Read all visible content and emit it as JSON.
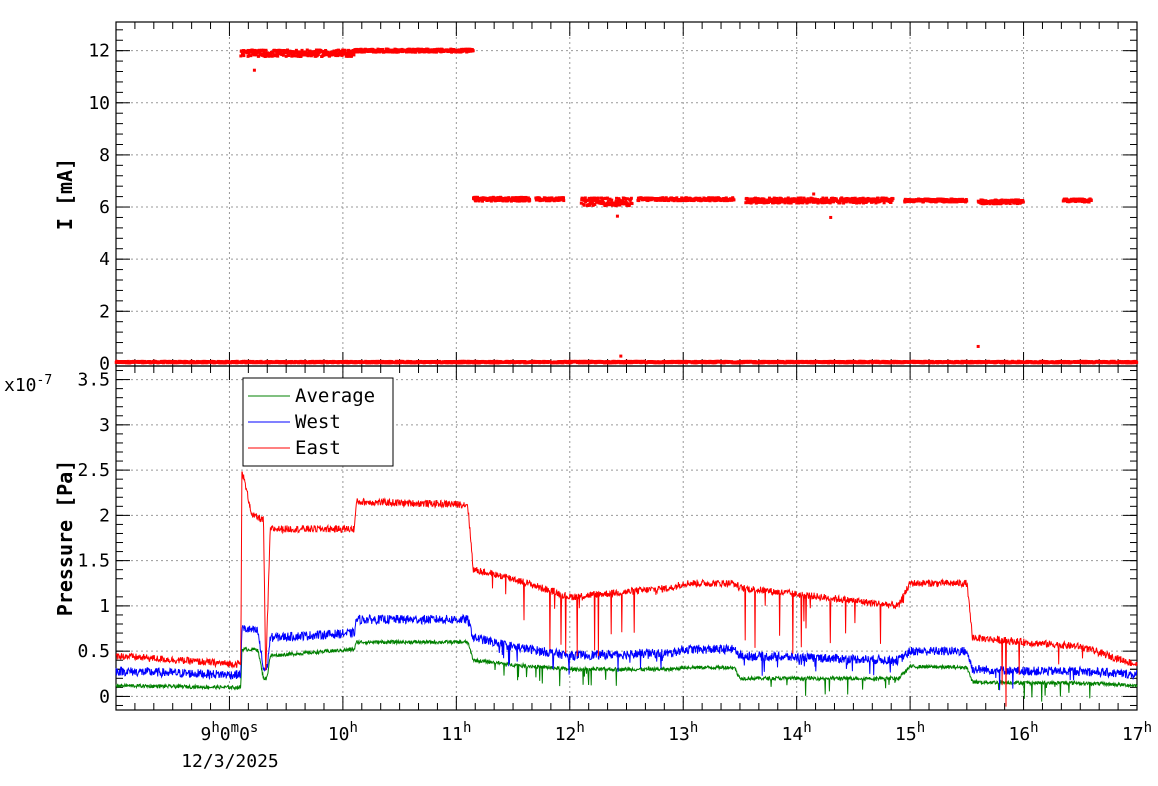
{
  "chart_data": [
    {
      "type": "scatter",
      "ylabel": "I [mA]",
      "xlim": [
        8.0,
        17.0
      ],
      "ylim": [
        -0.1,
        13.1
      ],
      "yticks": [
        0,
        2,
        4,
        6,
        8,
        10,
        12
      ],
      "grid": true,
      "series": [
        {
          "color": "#ff0000",
          "segments": [
            {
              "x0": 8.0,
              "x1": 17.0,
              "value": 0.05,
              "spread": 0.06
            },
            {
              "x0": 9.1,
              "x1": 10.1,
              "value": 11.9,
              "spread": 0.25
            },
            {
              "x0": 10.1,
              "x1": 11.15,
              "value": 12.0,
              "spread": 0.12
            },
            {
              "x0": 11.15,
              "x1": 11.65,
              "value": 6.3,
              "spread": 0.15
            },
            {
              "x0": 11.7,
              "x1": 11.95,
              "value": 6.3,
              "spread": 0.12
            },
            {
              "x0": 12.1,
              "x1": 12.55,
              "value": 6.2,
              "spread": 0.3
            },
            {
              "x0": 12.6,
              "x1": 12.85,
              "value": 6.3,
              "spread": 0.12
            },
            {
              "x0": 12.85,
              "x1": 13.45,
              "value": 6.3,
              "spread": 0.12
            },
            {
              "x0": 13.55,
              "x1": 14.85,
              "value": 6.25,
              "spread": 0.2
            },
            {
              "x0": 14.95,
              "x1": 15.5,
              "value": 6.25,
              "spread": 0.12
            },
            {
              "x0": 15.6,
              "x1": 16.0,
              "value": 6.2,
              "spread": 0.15
            },
            {
              "x0": 16.35,
              "x1": 16.6,
              "value": 6.25,
              "spread": 0.12
            }
          ],
          "outliers": [
            [
              9.22,
              11.25
            ],
            [
              12.42,
              5.65
            ],
            [
              14.3,
              5.6
            ],
            [
              12.45,
              0.28
            ],
            [
              15.6,
              0.65
            ],
            [
              14.15,
              6.5
            ]
          ]
        }
      ]
    },
    {
      "type": "line",
      "ylabel": "Pressure [Pa]",
      "exponent_label": "x10",
      "exponent_power": "-7",
      "xlim": [
        8.0,
        17.0
      ],
      "ylim": [
        -0.15,
        3.65
      ],
      "yticks": [
        "0",
        "0.5",
        "1",
        "1.5",
        "2",
        "2.5",
        "3",
        "3.5"
      ],
      "ytick_values": [
        0,
        0.5,
        1,
        1.5,
        2,
        2.5,
        3,
        3.5
      ],
      "grid": true,
      "legend_position": "top-left",
      "series": [
        {
          "name": "Average",
          "color": "#008000",
          "profile": [
            [
              8.0,
              0.12
            ],
            [
              9.0,
              0.1
            ],
            [
              9.1,
              0.1
            ],
            [
              9.11,
              0.52
            ],
            [
              9.25,
              0.52
            ],
            [
              9.3,
              0.2
            ],
            [
              9.33,
              0.2
            ],
            [
              9.36,
              0.45
            ],
            [
              10.1,
              0.52
            ],
            [
              10.12,
              0.6
            ],
            [
              11.1,
              0.6
            ],
            [
              11.15,
              0.4
            ],
            [
              11.5,
              0.35
            ],
            [
              12.0,
              0.3
            ],
            [
              12.9,
              0.3
            ],
            [
              13.0,
              0.32
            ],
            [
              13.45,
              0.32
            ],
            [
              13.5,
              0.2
            ],
            [
              14.9,
              0.2
            ],
            [
              15.0,
              0.33
            ],
            [
              15.5,
              0.32
            ],
            [
              15.55,
              0.16
            ],
            [
              16.0,
              0.15
            ],
            [
              16.5,
              0.15
            ],
            [
              17.0,
              0.12
            ]
          ],
          "noise": 0.02
        },
        {
          "name": "West",
          "color": "#0000ff",
          "profile": [
            [
              8.0,
              0.28
            ],
            [
              9.0,
              0.24
            ],
            [
              9.1,
              0.24
            ],
            [
              9.11,
              0.75
            ],
            [
              9.25,
              0.72
            ],
            [
              9.3,
              0.3
            ],
            [
              9.33,
              0.3
            ],
            [
              9.36,
              0.65
            ],
            [
              10.1,
              0.7
            ],
            [
              10.12,
              0.85
            ],
            [
              11.1,
              0.85
            ],
            [
              11.15,
              0.65
            ],
            [
              11.5,
              0.55
            ],
            [
              12.0,
              0.45
            ],
            [
              12.9,
              0.48
            ],
            [
              13.0,
              0.52
            ],
            [
              13.45,
              0.52
            ],
            [
              13.5,
              0.45
            ],
            [
              14.9,
              0.4
            ],
            [
              15.0,
              0.5
            ],
            [
              15.5,
              0.5
            ],
            [
              15.55,
              0.3
            ],
            [
              16.0,
              0.28
            ],
            [
              16.5,
              0.28
            ],
            [
              17.0,
              0.24
            ]
          ],
          "noise": 0.05
        },
        {
          "name": "East",
          "color": "#ff0000",
          "profile": [
            [
              8.0,
              0.45
            ],
            [
              9.0,
              0.36
            ],
            [
              9.1,
              0.36
            ],
            [
              9.11,
              2.5
            ],
            [
              9.2,
              2.0
            ],
            [
              9.3,
              1.95
            ],
            [
              9.32,
              0.25
            ],
            [
              9.36,
              1.85
            ],
            [
              10.1,
              1.85
            ],
            [
              10.12,
              2.15
            ],
            [
              11.1,
              2.12
            ],
            [
              11.15,
              1.4
            ],
            [
              11.5,
              1.3
            ],
            [
              12.0,
              1.1
            ],
            [
              12.9,
              1.2
            ],
            [
              13.0,
              1.25
            ],
            [
              13.45,
              1.25
            ],
            [
              13.5,
              1.2
            ],
            [
              14.9,
              1.0
            ],
            [
              15.0,
              1.25
            ],
            [
              15.5,
              1.25
            ],
            [
              15.55,
              0.65
            ],
            [
              16.0,
              0.6
            ],
            [
              16.5,
              0.55
            ],
            [
              17.0,
              0.35
            ]
          ],
          "noise": 0.04
        }
      ]
    }
  ],
  "x_axis": {
    "ticks": [
      {
        "value": 9,
        "text": "9",
        "superscript": "h",
        "text2": "0",
        "superscript2": "m",
        "text3": "0",
        "superscript3": "s"
      },
      {
        "value": 10,
        "text": "10",
        "superscript": "h"
      },
      {
        "value": 11,
        "text": "11",
        "superscript": "h"
      },
      {
        "value": 12,
        "text": "12",
        "superscript": "h"
      },
      {
        "value": 13,
        "text": "13",
        "superscript": "h"
      },
      {
        "value": 14,
        "text": "14",
        "superscript": "h"
      },
      {
        "value": 15,
        "text": "15",
        "superscript": "h"
      },
      {
        "value": 16,
        "text": "16",
        "superscript": "h"
      },
      {
        "value": 17,
        "text": "17",
        "superscript": "h"
      }
    ],
    "date_label": "12/3/2025"
  }
}
